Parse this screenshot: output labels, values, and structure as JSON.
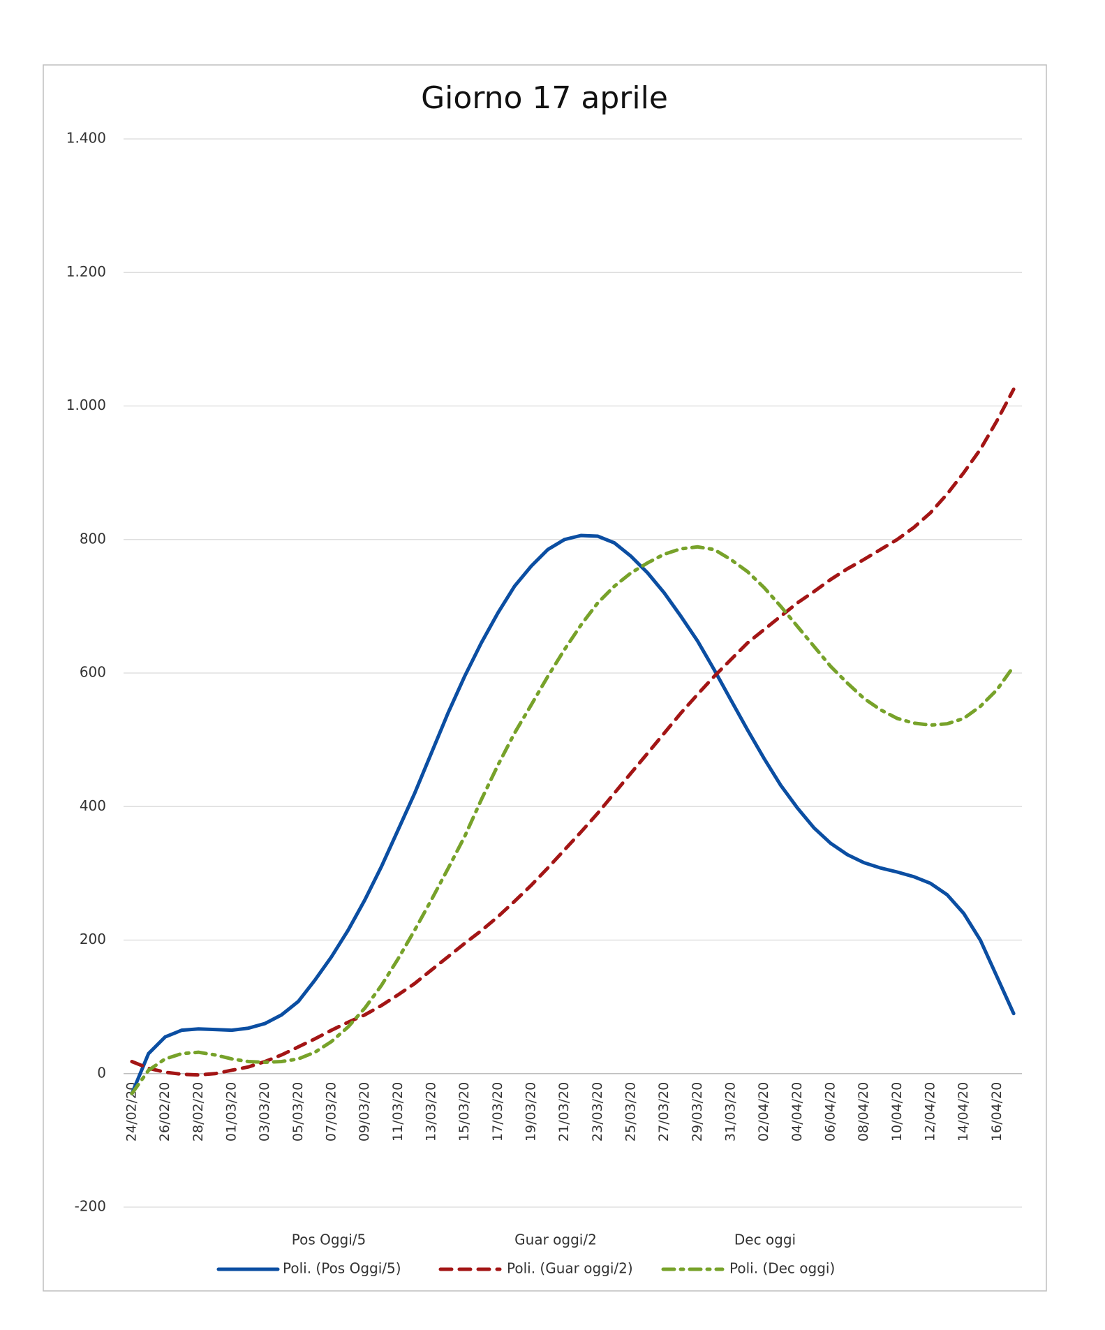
{
  "chart_data": {
    "type": "line",
    "title": "Giorno 17 aprile",
    "categories": [
      "24/02/20",
      null,
      "26/02/20",
      null,
      "28/02/20",
      null,
      "01/03/20",
      null,
      "03/03/20",
      null,
      "05/03/20",
      null,
      "07/03/20",
      null,
      "09/03/20",
      null,
      "11/03/20",
      null,
      "13/03/20",
      null,
      "15/03/20",
      null,
      "17/03/20",
      null,
      "19/03/20",
      null,
      "21/03/20",
      null,
      "23/03/20",
      null,
      "25/03/20",
      null,
      "27/03/20",
      null,
      "29/03/20",
      null,
      "31/03/20",
      null,
      "02/04/20",
      null,
      "04/04/20",
      null,
      "06/04/20",
      null,
      "08/04/20",
      null,
      "10/04/20",
      null,
      "12/04/20",
      null,
      "14/04/20",
      null,
      "16/04/20",
      null
    ],
    "legend_series": [
      "Pos Oggi/5",
      "Guar oggi/2",
      "Dec oggi"
    ],
    "series": [
      {
        "name": "Poli. (Pos Oggi/5)",
        "color": "#0b4ea2",
        "dash": "solid",
        "values": [
          -30,
          30,
          55,
          65,
          67,
          66,
          65,
          68,
          75,
          88,
          108,
          140,
          175,
          215,
          260,
          310,
          365,
          420,
          480,
          540,
          595,
          645,
          690,
          730,
          760,
          785,
          800,
          806,
          805,
          795,
          775,
          750,
          720,
          685,
          648,
          605,
          560,
          515,
          472,
          432,
          398,
          368,
          345,
          328,
          316,
          308,
          302,
          295,
          285,
          268,
          240,
          200,
          145,
          90
        ]
      },
      {
        "name": "Poli. (Guar oggi/2)",
        "color": "#a31515",
        "dash": "dash",
        "values": [
          18,
          8,
          2,
          -1,
          -2,
          0,
          5,
          10,
          18,
          28,
          40,
          52,
          65,
          77,
          88,
          102,
          118,
          135,
          155,
          175,
          195,
          214,
          235,
          258,
          282,
          308,
          335,
          362,
          390,
          420,
          450,
          480,
          510,
          540,
          568,
          595,
          620,
          645,
          665,
          685,
          705,
          722,
          740,
          756,
          770,
          785,
          800,
          818,
          840,
          868,
          900,
          935,
          978,
          1025
        ]
      },
      {
        "name": "Poli. (Dec oggi)",
        "color": "#77a22a",
        "dash": "dashdot",
        "values": [
          -30,
          5,
          22,
          30,
          32,
          28,
          22,
          18,
          17,
          18,
          22,
          32,
          48,
          70,
          98,
          132,
          172,
          215,
          260,
          307,
          355,
          410,
          462,
          510,
          552,
          595,
          635,
          672,
          705,
          730,
          750,
          765,
          778,
          786,
          789,
          785,
          770,
          752,
          728,
          700,
          670,
          640,
          610,
          585,
          562,
          545,
          532,
          525,
          522,
          524,
          532,
          550,
          575,
          610
        ]
      }
    ],
    "ylim": [
      -200,
      1400
    ],
    "yticks": [
      -200,
      0,
      200,
      400,
      600,
      800,
      {
        "value": 1000,
        "label": "1.000"
      },
      {
        "value": 1200,
        "label": "1.200"
      },
      {
        "value": 1400,
        "label": "1.400"
      }
    ],
    "grid": true
  }
}
